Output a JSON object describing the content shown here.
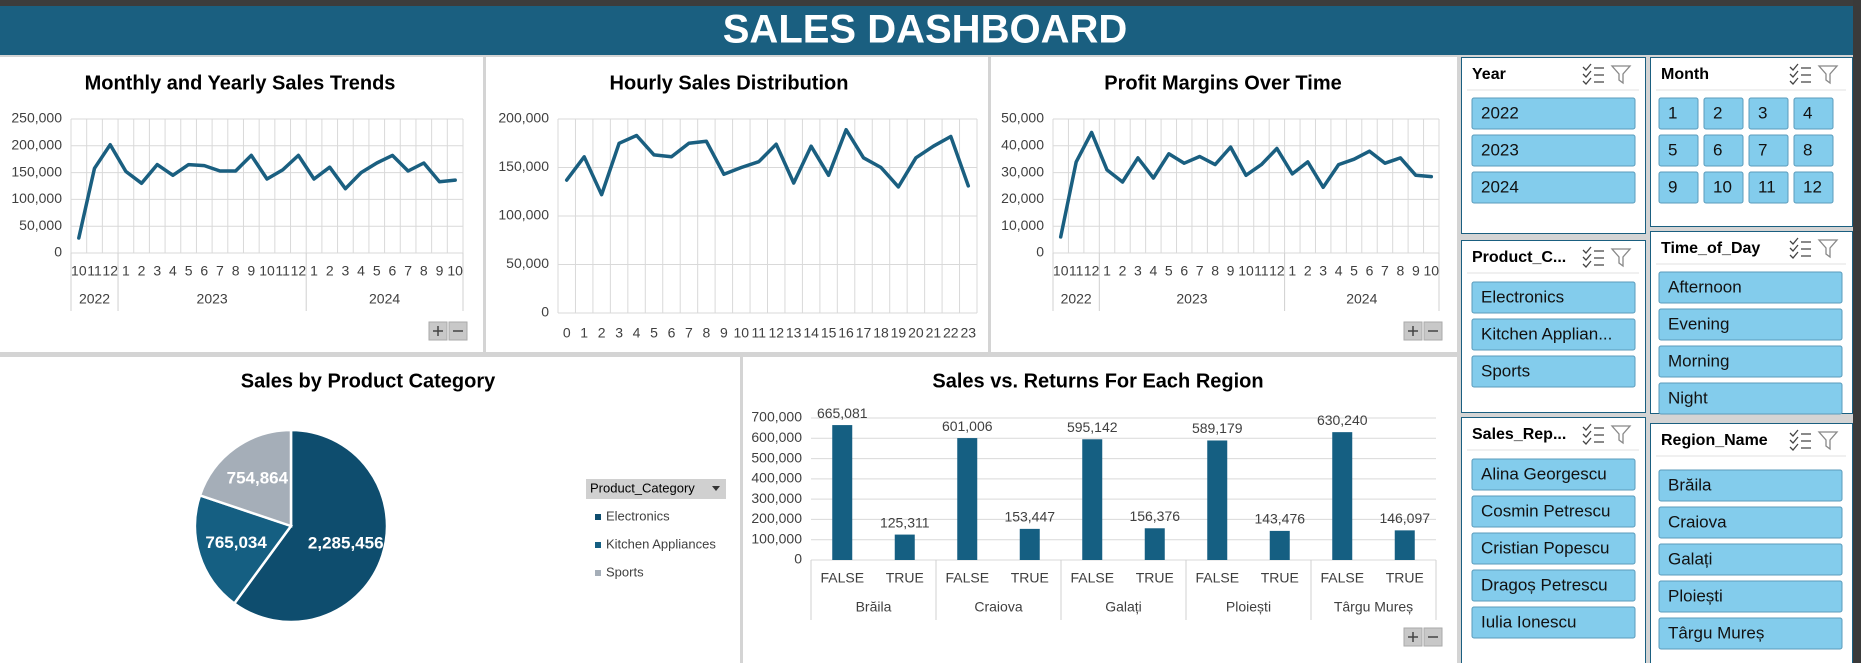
{
  "header": {
    "title": "SALES DASHBOARD"
  },
  "chart_data": [
    {
      "type": "line",
      "title": "Monthly and Yearly Sales Trends",
      "color": "#1a5f80",
      "grid": "both",
      "groups": [
        {
          "name": "2022",
          "categories": [
            "10",
            "11",
            "12"
          ],
          "values": [
            28000,
            158000,
            202000
          ]
        },
        {
          "name": "2023",
          "categories": [
            "1",
            "2",
            "3",
            "4",
            "5",
            "6",
            "7",
            "8",
            "9",
            "10",
            "11",
            "12"
          ],
          "values": [
            152000,
            130000,
            165000,
            145000,
            165000,
            163000,
            153000,
            153000,
            182000,
            138000,
            155000,
            182000
          ]
        },
        {
          "name": "2024",
          "categories": [
            "1",
            "2",
            "3",
            "4",
            "5",
            "6",
            "7",
            "8",
            "9",
            "10"
          ],
          "values": [
            138000,
            160000,
            120000,
            150000,
            168000,
            182000,
            153000,
            168000,
            133000,
            136000
          ]
        }
      ],
      "ylim": [
        0,
        250000
      ],
      "yticks": [
        0,
        {
          "value": 50000,
          "label": "50,000"
        },
        {
          "value": 100000,
          "label": "100,000"
        },
        {
          "value": 150000,
          "label": "150,000"
        },
        {
          "value": 200000,
          "label": "200,000"
        },
        {
          "value": 250000,
          "label": "250,000"
        }
      ]
    },
    {
      "type": "line",
      "title": "Hourly Sales Distribution",
      "color": "#1a5f80",
      "grid": "both",
      "categories": [
        "0",
        "1",
        "2",
        "3",
        "4",
        "5",
        "6",
        "7",
        "8",
        "9",
        "10",
        "11",
        "12",
        "13",
        "14",
        "15",
        "16",
        "17",
        "18",
        "19",
        "20",
        "21",
        "22",
        "23"
      ],
      "values": [
        137000,
        161000,
        122000,
        175000,
        183000,
        163000,
        161000,
        175000,
        177000,
        143000,
        150000,
        156000,
        174000,
        134000,
        172000,
        142000,
        189000,
        160000,
        150000,
        130000,
        160000,
        172000,
        182000,
        131000
      ],
      "ylim": [
        0,
        200000
      ],
      "yticks": [
        0,
        {
          "value": 50000,
          "label": "50,000"
        },
        {
          "value": 100000,
          "label": "100,000"
        },
        {
          "value": 150000,
          "label": "150,000"
        },
        {
          "value": 200000,
          "label": "200,000"
        }
      ]
    },
    {
      "type": "line",
      "title": "Profit Margins Over Time",
      "color": "#1a5f80",
      "grid": "both",
      "groups": [
        {
          "name": "2022",
          "categories": [
            "10",
            "11",
            "12"
          ],
          "values": [
            6000,
            34000,
            45000
          ]
        },
        {
          "name": "2023",
          "categories": [
            "1",
            "2",
            "3",
            "4",
            "5",
            "6",
            "7",
            "8",
            "9",
            "10",
            "11",
            "12"
          ],
          "values": [
            31000,
            26500,
            35500,
            28000,
            37000,
            33500,
            36000,
            33000,
            39500,
            29000,
            33000,
            39000
          ]
        },
        {
          "name": "2024",
          "categories": [
            "1",
            "2",
            "3",
            "4",
            "5",
            "6",
            "7",
            "8",
            "9",
            "10"
          ],
          "values": [
            29500,
            34000,
            24500,
            33000,
            35000,
            38000,
            33500,
            35500,
            29000,
            28500
          ]
        }
      ],
      "ylim": [
        0,
        50000
      ],
      "yticks": [
        0,
        {
          "value": 10000,
          "label": "10,000"
        },
        {
          "value": 20000,
          "label": "20,000"
        },
        {
          "value": 30000,
          "label": "30,000"
        },
        {
          "value": 40000,
          "label": "40,000"
        },
        {
          "value": 50000,
          "label": "50,000"
        }
      ]
    },
    {
      "type": "pie",
      "title": "Sales by Product Category",
      "legend_title": "Product_Category",
      "categories": [
        "Electronics",
        "Kitchen Appliances",
        "Sports"
      ],
      "values": [
        2285456,
        765034,
        754864
      ],
      "value_labels": [
        "2,285,456",
        "765,034",
        "754,864"
      ],
      "colors": [
        "#0e4d6e",
        "#155f82",
        "#a5aeb8"
      ]
    },
    {
      "type": "bar",
      "title": "Sales vs. Returns For Each Region",
      "color": "#155f82",
      "grid": true,
      "groups": [
        {
          "name": "Brăila",
          "categories": [
            "FALSE",
            "TRUE"
          ],
          "values": [
            665081,
            125311
          ],
          "value_labels": [
            "665,081",
            "125,311"
          ]
        },
        {
          "name": "Craiova",
          "categories": [
            "FALSE",
            "TRUE"
          ],
          "values": [
            601006,
            153447
          ],
          "value_labels": [
            "601,006",
            "153,447"
          ]
        },
        {
          "name": "Galați",
          "categories": [
            "FALSE",
            "TRUE"
          ],
          "values": [
            595142,
            156376
          ],
          "value_labels": [
            "595,142",
            "156,376"
          ]
        },
        {
          "name": "Ploiești",
          "categories": [
            "FALSE",
            "TRUE"
          ],
          "values": [
            589179,
            143476
          ],
          "value_labels": [
            "589,179",
            "143,476"
          ]
        },
        {
          "name": "Târgu Mureș",
          "categories": [
            "FALSE",
            "TRUE"
          ],
          "values": [
            630240,
            146097
          ],
          "value_labels": [
            "630,240",
            "146,097"
          ]
        }
      ],
      "ylim": [
        0,
        700000
      ],
      "yticks": [
        0,
        {
          "value": 100000,
          "label": "100,000"
        },
        {
          "value": 200000,
          "label": "200,000"
        },
        {
          "value": 300000,
          "label": "300,000"
        },
        {
          "value": 400000,
          "label": "400,000"
        },
        {
          "value": 500000,
          "label": "500,000"
        },
        {
          "value": 600000,
          "label": "600,000"
        },
        {
          "value": 700000,
          "label": "700,000"
        }
      ]
    }
  ],
  "slicers": [
    {
      "title": "Year",
      "items": [
        "2022",
        "2023",
        "2024"
      ]
    },
    {
      "title": "Month",
      "items": [
        "1",
        "2",
        "3",
        "4",
        "5",
        "6",
        "7",
        "8",
        "9",
        "10",
        "11",
        "12"
      ]
    },
    {
      "title": "Product_C...",
      "items": [
        "Electronics",
        "Kitchen Applian...",
        "Sports"
      ]
    },
    {
      "title": "Time_of_Day",
      "items": [
        "Afternoon",
        "Evening",
        "Morning",
        "Night"
      ]
    },
    {
      "title": "Sales_Rep...",
      "items": [
        "Alina Georgescu",
        "Cosmin Petrescu",
        "Cristian Popescu",
        "Dragoș Petrescu",
        "Iulia Ionescu"
      ]
    },
    {
      "title": "Region_Name",
      "items": [
        "Brăila",
        "Craiova",
        "Galați",
        "Ploiești",
        "Târgu Mureș"
      ]
    }
  ]
}
